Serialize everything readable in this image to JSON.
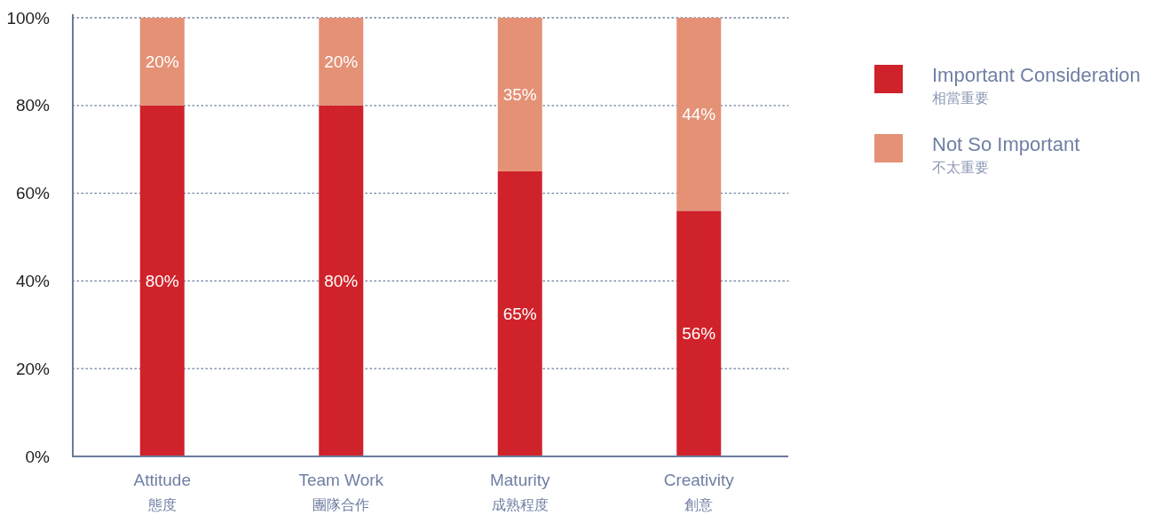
{
  "chart_data": {
    "type": "bar",
    "stacked": true,
    "categories": [
      "Attitude\n態度",
      "Team Work\n團隊合作",
      "Maturity\n成熟程度",
      "Creativity\n創意"
    ],
    "series": [
      {
        "name": "Important Consideration\n相當重要",
        "color": "#d0222a",
        "values": [
          80,
          80,
          65,
          56
        ],
        "value_labels": [
          "80%",
          "80%",
          "65%",
          "56%"
        ]
      },
      {
        "name": "Not So Important\n不太重要",
        "color": "#e49176",
        "values": [
          20,
          20,
          35,
          44
        ],
        "value_labels": [
          "20%",
          "20%",
          "35%",
          "44%"
        ]
      }
    ],
    "ylim": [
      0,
      100
    ],
    "yticks": [
      {
        "value": 0,
        "label": "0%"
      },
      {
        "value": 20,
        "label": "20%"
      },
      {
        "value": 40,
        "label": "40%"
      },
      {
        "value": 60,
        "label": "60%"
      },
      {
        "value": 80,
        "label": "80%"
      },
      {
        "value": 100,
        "label": "100%"
      }
    ],
    "grid": "y",
    "legend": "right"
  }
}
